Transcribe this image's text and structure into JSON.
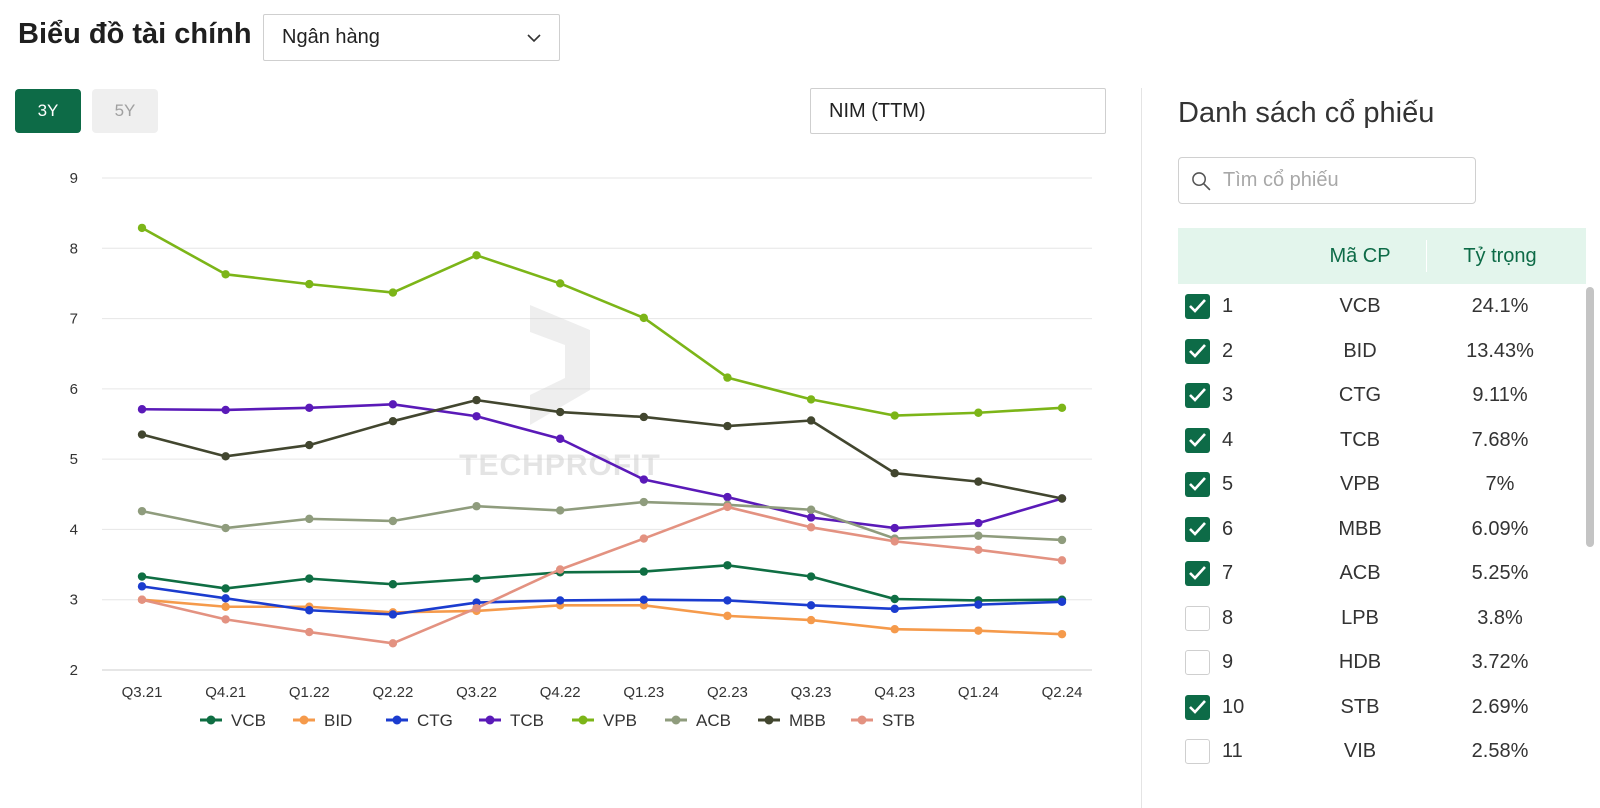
{
  "header": {
    "title": "Biểu đồ tài chính",
    "industry_select": {
      "value": "Ngân hàng",
      "icon": "chevron-down-icon"
    }
  },
  "range_buttons": [
    {
      "label": "3Y",
      "active": true
    },
    {
      "label": "5Y",
      "active": false
    }
  ],
  "metric_select": {
    "value": "NIM (TTM)"
  },
  "watermark": {
    "text": "TECHPROFIT"
  },
  "chart_data": {
    "type": "line",
    "title": "",
    "xlabel": "",
    "ylabel": "",
    "ylim": [
      2,
      9
    ],
    "yticks": [
      2,
      3,
      4,
      5,
      6,
      7,
      8,
      9
    ],
    "grid": true,
    "legend_position": "bottom",
    "x": [
      "Q3.21",
      "Q4.21",
      "Q1.22",
      "Q2.22",
      "Q3.22",
      "Q4.22",
      "Q1.23",
      "Q2.23",
      "Q3.23",
      "Q4.23",
      "Q1.24",
      "Q2.24"
    ],
    "series": [
      {
        "name": "VCB",
        "color": "#0f6e43",
        "values": [
          3.33,
          3.16,
          3.3,
          3.22,
          3.3,
          3.39,
          3.4,
          3.49,
          3.33,
          3.01,
          2.99,
          3.0
        ]
      },
      {
        "name": "BID",
        "color": "#f59a4b",
        "values": [
          3.0,
          2.9,
          2.9,
          2.82,
          2.84,
          2.92,
          2.92,
          2.77,
          2.71,
          2.58,
          2.56,
          2.51
        ]
      },
      {
        "name": "CTG",
        "color": "#1b3ccf",
        "values": [
          3.19,
          3.02,
          2.85,
          2.79,
          2.96,
          2.99,
          3.0,
          2.99,
          2.92,
          2.87,
          2.93,
          2.97
        ]
      },
      {
        "name": "TCB",
        "color": "#5a1ab8",
        "values": [
          5.71,
          5.7,
          5.73,
          5.78,
          5.61,
          5.29,
          4.71,
          4.46,
          4.17,
          4.02,
          4.09,
          4.44
        ]
      },
      {
        "name": "VPB",
        "color": "#7cb518",
        "values": [
          8.29,
          7.63,
          7.49,
          7.37,
          7.9,
          7.5,
          7.01,
          6.16,
          5.85,
          5.62,
          5.66,
          5.73
        ]
      },
      {
        "name": "ACB",
        "color": "#8f9c7d",
        "values": [
          4.26,
          4.02,
          4.15,
          4.12,
          4.33,
          4.27,
          4.39,
          4.35,
          4.28,
          3.87,
          3.91,
          3.85
        ]
      },
      {
        "name": "MBB",
        "color": "#42462f",
        "values": [
          5.35,
          5.04,
          5.2,
          5.54,
          5.84,
          5.67,
          5.6,
          5.47,
          5.55,
          4.8,
          4.68,
          4.44
        ]
      },
      {
        "name": "STB",
        "color": "#e39281",
        "values": [
          3.0,
          2.72,
          2.54,
          2.38,
          2.88,
          3.43,
          3.87,
          4.32,
          4.03,
          3.83,
          3.71,
          3.56
        ]
      }
    ]
  },
  "stock_panel": {
    "title": "Danh sách cổ phiếu",
    "search": {
      "placeholder": "Tìm cổ phiếu",
      "icon": "search-icon"
    },
    "columns": {
      "code": "Mã CP",
      "weight": "Tỷ trọng"
    },
    "rows": [
      {
        "rank": "1",
        "code": "VCB",
        "weight": "24.1%",
        "checked": true
      },
      {
        "rank": "2",
        "code": "BID",
        "weight": "13.43%",
        "checked": true
      },
      {
        "rank": "3",
        "code": "CTG",
        "weight": "9.11%",
        "checked": true
      },
      {
        "rank": "4",
        "code": "TCB",
        "weight": "7.68%",
        "checked": true
      },
      {
        "rank": "5",
        "code": "VPB",
        "weight": "7%",
        "checked": true
      },
      {
        "rank": "6",
        "code": "MBB",
        "weight": "6.09%",
        "checked": true
      },
      {
        "rank": "7",
        "code": "ACB",
        "weight": "5.25%",
        "checked": true
      },
      {
        "rank": "8",
        "code": "LPB",
        "weight": "3.8%",
        "checked": false
      },
      {
        "rank": "9",
        "code": "HDB",
        "weight": "3.72%",
        "checked": false
      },
      {
        "rank": "10",
        "code": "STB",
        "weight": "2.69%",
        "checked": true
      },
      {
        "rank": "11",
        "code": "VIB",
        "weight": "2.58%",
        "checked": false
      }
    ]
  }
}
